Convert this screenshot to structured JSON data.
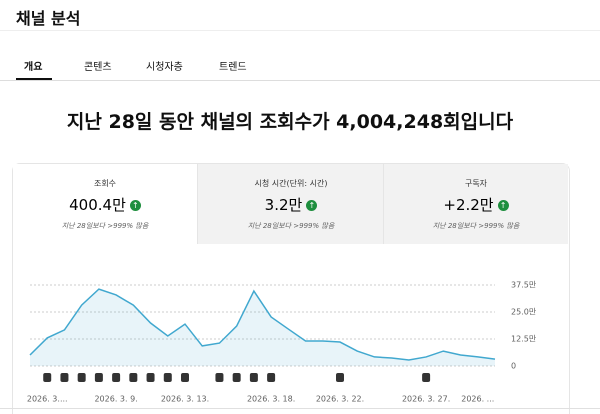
{
  "header": {
    "title": "채널 분석"
  },
  "tabs": [
    "개요",
    "콘텐츠",
    "시청자층",
    "트렌드"
  ],
  "headline": "지난 28일 동안 채널의 조회수가 4,004,248회입니다",
  "metrics": [
    {
      "label": "조회수",
      "value": "400.4만",
      "change": "지난 28일보다 >999% 많음"
    },
    {
      "label": "시청 시간(단위: 시간)",
      "value": "3.2만",
      "change": "지난 28일보다 >999% 많음"
    },
    {
      "label": "구독자",
      "value": "+2.2만",
      "change": "지난 28일보다 >999% 많음"
    }
  ],
  "chart_data": {
    "type": "line",
    "color": "#41a8cf",
    "grid": true,
    "categories": [
      null,
      "2026. 3....",
      null,
      null,
      null,
      "2026. 3. 9.",
      null,
      null,
      null,
      "2026. 3. 13.",
      null,
      null,
      null,
      null,
      "2026. 3. 18.",
      null,
      null,
      null,
      "2026. 3. 22.",
      null,
      null,
      null,
      null,
      "2026. 3. 27.",
      null,
      null,
      "2026. ...",
      null
    ],
    "values": [
      5.1,
      13,
      16.7,
      28.2,
      35.6,
      32.9,
      28.2,
      19.9,
      13.9,
      19.4,
      9.3,
      10.6,
      18.5,
      34.7,
      22.7,
      17.1,
      11.6,
      11.6,
      11.1,
      6.9,
      4.2,
      3.7,
      2.8,
      4.2,
      6.9,
      5.1,
      4.2,
      3.2
    ],
    "ylim": [
      0,
      37.5
    ],
    "yticks": [
      0,
      {
        "value": 12.5,
        "label": "12.5만"
      },
      {
        "value": 25,
        "label": "25.0만"
      },
      {
        "value": 37.5,
        "label": "37.5만"
      }
    ]
  }
}
